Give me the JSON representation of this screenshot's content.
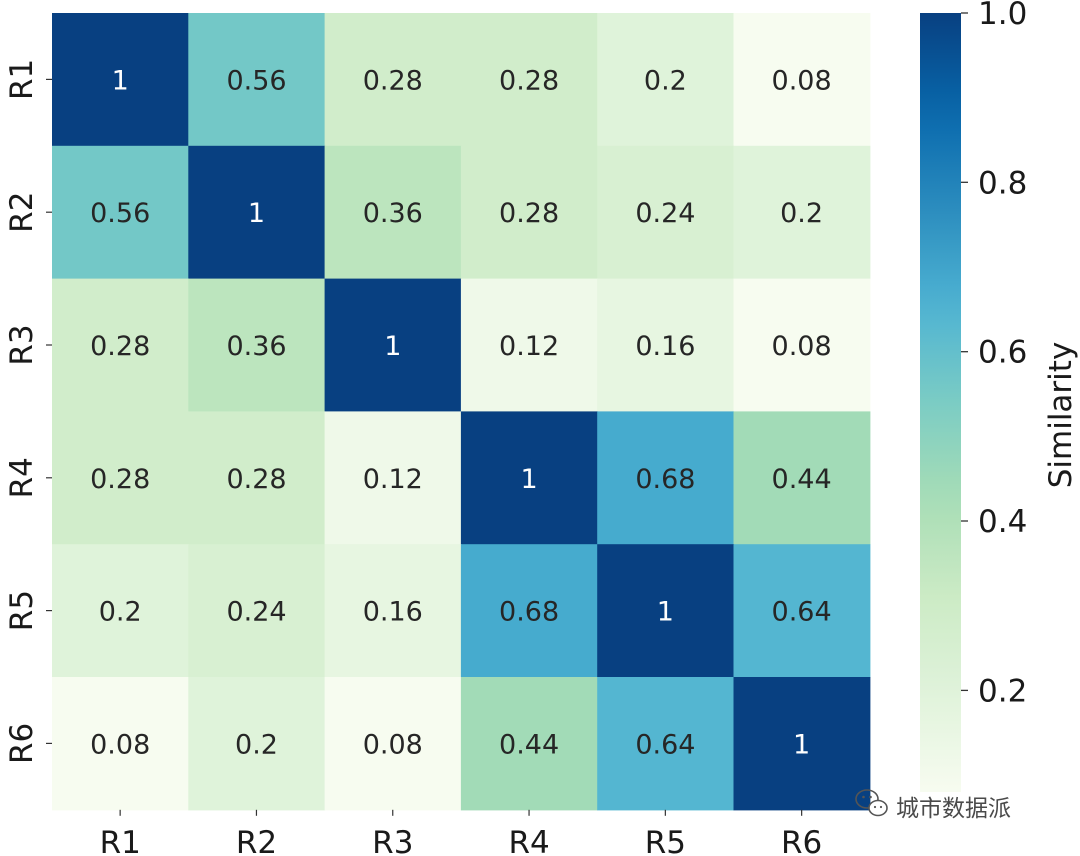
{
  "chart_data": {
    "type": "heatmap",
    "title": "",
    "xlabel": "",
    "ylabel": "",
    "rows": [
      "R1",
      "R2",
      "R3",
      "R4",
      "R5",
      "R6"
    ],
    "columns": [
      "R1",
      "R2",
      "R3",
      "R4",
      "R5",
      "R6"
    ],
    "values": [
      [
        1,
        0.56,
        0.28,
        0.28,
        0.2,
        0.08
      ],
      [
        0.56,
        1,
        0.36,
        0.28,
        0.24,
        0.2
      ],
      [
        0.28,
        0.36,
        1,
        0.12,
        0.16,
        0.08
      ],
      [
        0.28,
        0.28,
        0.12,
        1,
        0.68,
        0.44
      ],
      [
        0.2,
        0.24,
        0.16,
        0.68,
        1,
        0.64
      ],
      [
        0.08,
        0.2,
        0.08,
        0.44,
        0.64,
        1
      ]
    ],
    "annotations_shown": true,
    "colormap": "GnBu",
    "color_range": [
      0.08,
      1.0
    ],
    "colorbar": {
      "label": "Similarity",
      "ticks": [
        0.2,
        0.4,
        0.6,
        0.8,
        1.0
      ],
      "tick_labels": [
        "0.2",
        "0.4",
        "0.6",
        "0.8",
        "1.0"
      ],
      "placement": "right"
    },
    "label_colors": {
      "light": "#ffffff",
      "dark": "#262626"
    }
  },
  "watermark": {
    "text": "城市数据派",
    "icon": "wechat-icon"
  }
}
